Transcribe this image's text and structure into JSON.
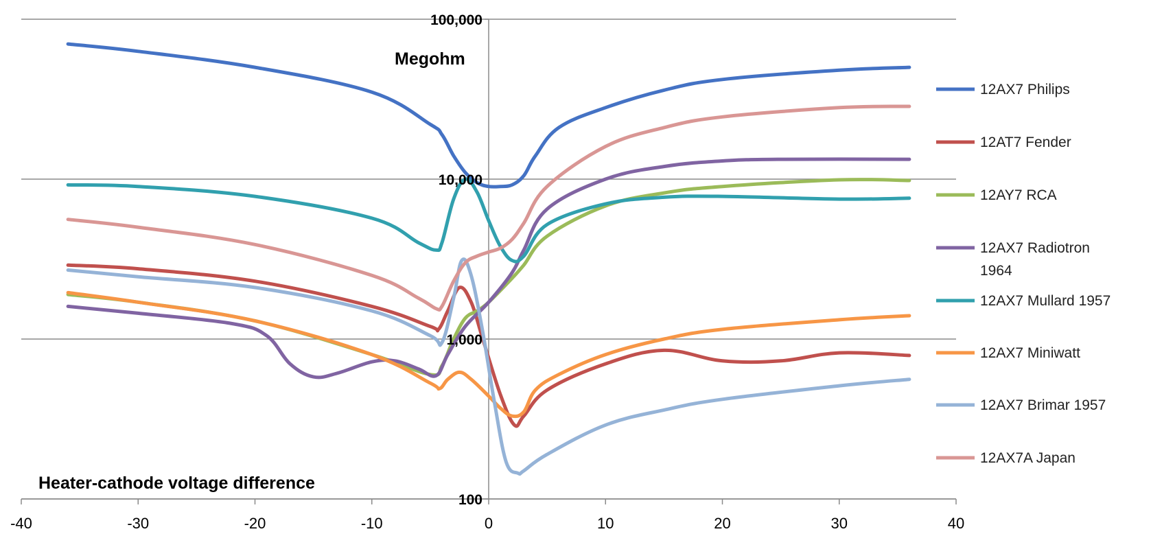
{
  "chart_data": {
    "type": "line",
    "title": "",
    "xlabel": "Heater-cathode voltage difference",
    "ylabel": "Megohm",
    "xlim": [
      -40,
      40
    ],
    "ylim": [
      100,
      100000
    ],
    "yscale": "log",
    "x_ticks": [
      "-40",
      "-30",
      "-20",
      "-10",
      "0",
      "10",
      "20",
      "30",
      "40"
    ],
    "y_ticks": [
      "100",
      "1,000",
      "10,000",
      "100,000"
    ],
    "grid": "horizontal major lines",
    "legend": "right",
    "series": [
      {
        "name": "12AX7 Philips",
        "color": "#4472C4",
        "x": [
          -36,
          -30,
          -20,
          -10,
          -5,
          -4,
          -3,
          -2,
          -1,
          0,
          1,
          2,
          3,
          4,
          6,
          10,
          15,
          20,
          30,
          36
        ],
        "y": [
          70000,
          63000,
          50000,
          35000,
          22000,
          19000,
          14000,
          11000,
          9500,
          9000,
          9000,
          9200,
          10500,
          14000,
          21000,
          28000,
          36000,
          42000,
          48000,
          50000
        ]
      },
      {
        "name": "12AT7 Fender",
        "color": "#C0504D",
        "x": [
          -36,
          -30,
          -20,
          -10,
          -5,
          -4.3,
          -3.5,
          -2.5,
          -1.5,
          -0.5,
          1,
          2.2,
          3,
          5,
          10,
          15,
          20,
          25,
          30,
          36
        ],
        "y": [
          2900,
          2750,
          2300,
          1600,
          1200,
          1150,
          1500,
          2100,
          1700,
          1000,
          450,
          290,
          330,
          480,
          700,
          850,
          730,
          730,
          820,
          790
        ]
      },
      {
        "name": "12AY7 RCA",
        "color": "#9BBB59",
        "x": [
          -36,
          -30,
          -20,
          -10,
          -5,
          -4,
          -3,
          -2,
          -1,
          0,
          2,
          3,
          5,
          10,
          15,
          20,
          30,
          36
        ],
        "y": [
          1900,
          1700,
          1300,
          800,
          600,
          680,
          1000,
          1350,
          1500,
          1700,
          2400,
          2900,
          4400,
          6800,
          8200,
          9000,
          9900,
          9800
        ]
      },
      {
        "name": "12AX7 Radiotron 1964",
        "color": "#8064A2",
        "x": [
          -36,
          -30,
          -22,
          -19,
          -17,
          -15,
          -13,
          -10,
          -8,
          -6,
          -4.5,
          -3.5,
          -2,
          0,
          2,
          3,
          5,
          10,
          15,
          20,
          25,
          36
        ],
        "y": [
          1600,
          1450,
          1250,
          1050,
          700,
          580,
          610,
          720,
          730,
          650,
          590,
          800,
          1200,
          1700,
          2600,
          3600,
          6500,
          10000,
          12000,
          13000,
          13300,
          13300
        ]
      },
      {
        "name": "12AX7 Mullard 1957",
        "color": "#31A0AE",
        "x": [
          -36,
          -30,
          -20,
          -10,
          -6,
          -4.5,
          -4,
          -3,
          -2,
          -1,
          0,
          1,
          2,
          3,
          5,
          10,
          15,
          20,
          30,
          36
        ],
        "y": [
          9200,
          9000,
          7800,
          5700,
          4000,
          3600,
          4000,
          7500,
          10000,
          8300,
          5500,
          3800,
          3100,
          3300,
          5200,
          7000,
          7700,
          7800,
          7500,
          7600
        ]
      },
      {
        "name": "12AX7 Miniwatt",
        "color": "#F79646",
        "x": [
          -36,
          -30,
          -20,
          -10,
          -5,
          -4.2,
          -3.5,
          -2.5,
          -1.5,
          0,
          1,
          2,
          3,
          4,
          6,
          10,
          15,
          20,
          30,
          36
        ],
        "y": [
          1950,
          1700,
          1300,
          800,
          530,
          490,
          560,
          620,
          560,
          440,
          370,
          330,
          350,
          480,
          600,
          800,
          1000,
          1150,
          1320,
          1400
        ]
      },
      {
        "name": "12AX7 Brimar 1957",
        "color": "#95B3D7",
        "x": [
          -36,
          -30,
          -20,
          -10,
          -5,
          -4,
          -3,
          -2.3,
          -1.5,
          -0.5,
          0.5,
          1.5,
          2.5,
          3,
          5,
          10,
          15,
          20,
          30,
          36
        ],
        "y": [
          2700,
          2450,
          2100,
          1500,
          1050,
          950,
          1800,
          3100,
          2500,
          1100,
          400,
          170,
          145,
          150,
          190,
          290,
          360,
          420,
          510,
          560
        ]
      },
      {
        "name": "12AX7A Japan",
        "color": "#D99694",
        "x": [
          -36,
          -30,
          -20,
          -10,
          -6,
          -4.5,
          -4,
          -3,
          -2,
          -1,
          0,
          1,
          2,
          3,
          5,
          10,
          15,
          20,
          30,
          36
        ],
        "y": [
          5600,
          5000,
          3900,
          2500,
          1800,
          1550,
          1600,
          2300,
          3000,
          3300,
          3500,
          3700,
          4200,
          5300,
          9000,
          16000,
          21000,
          24500,
          28000,
          28500
        ]
      }
    ]
  }
}
